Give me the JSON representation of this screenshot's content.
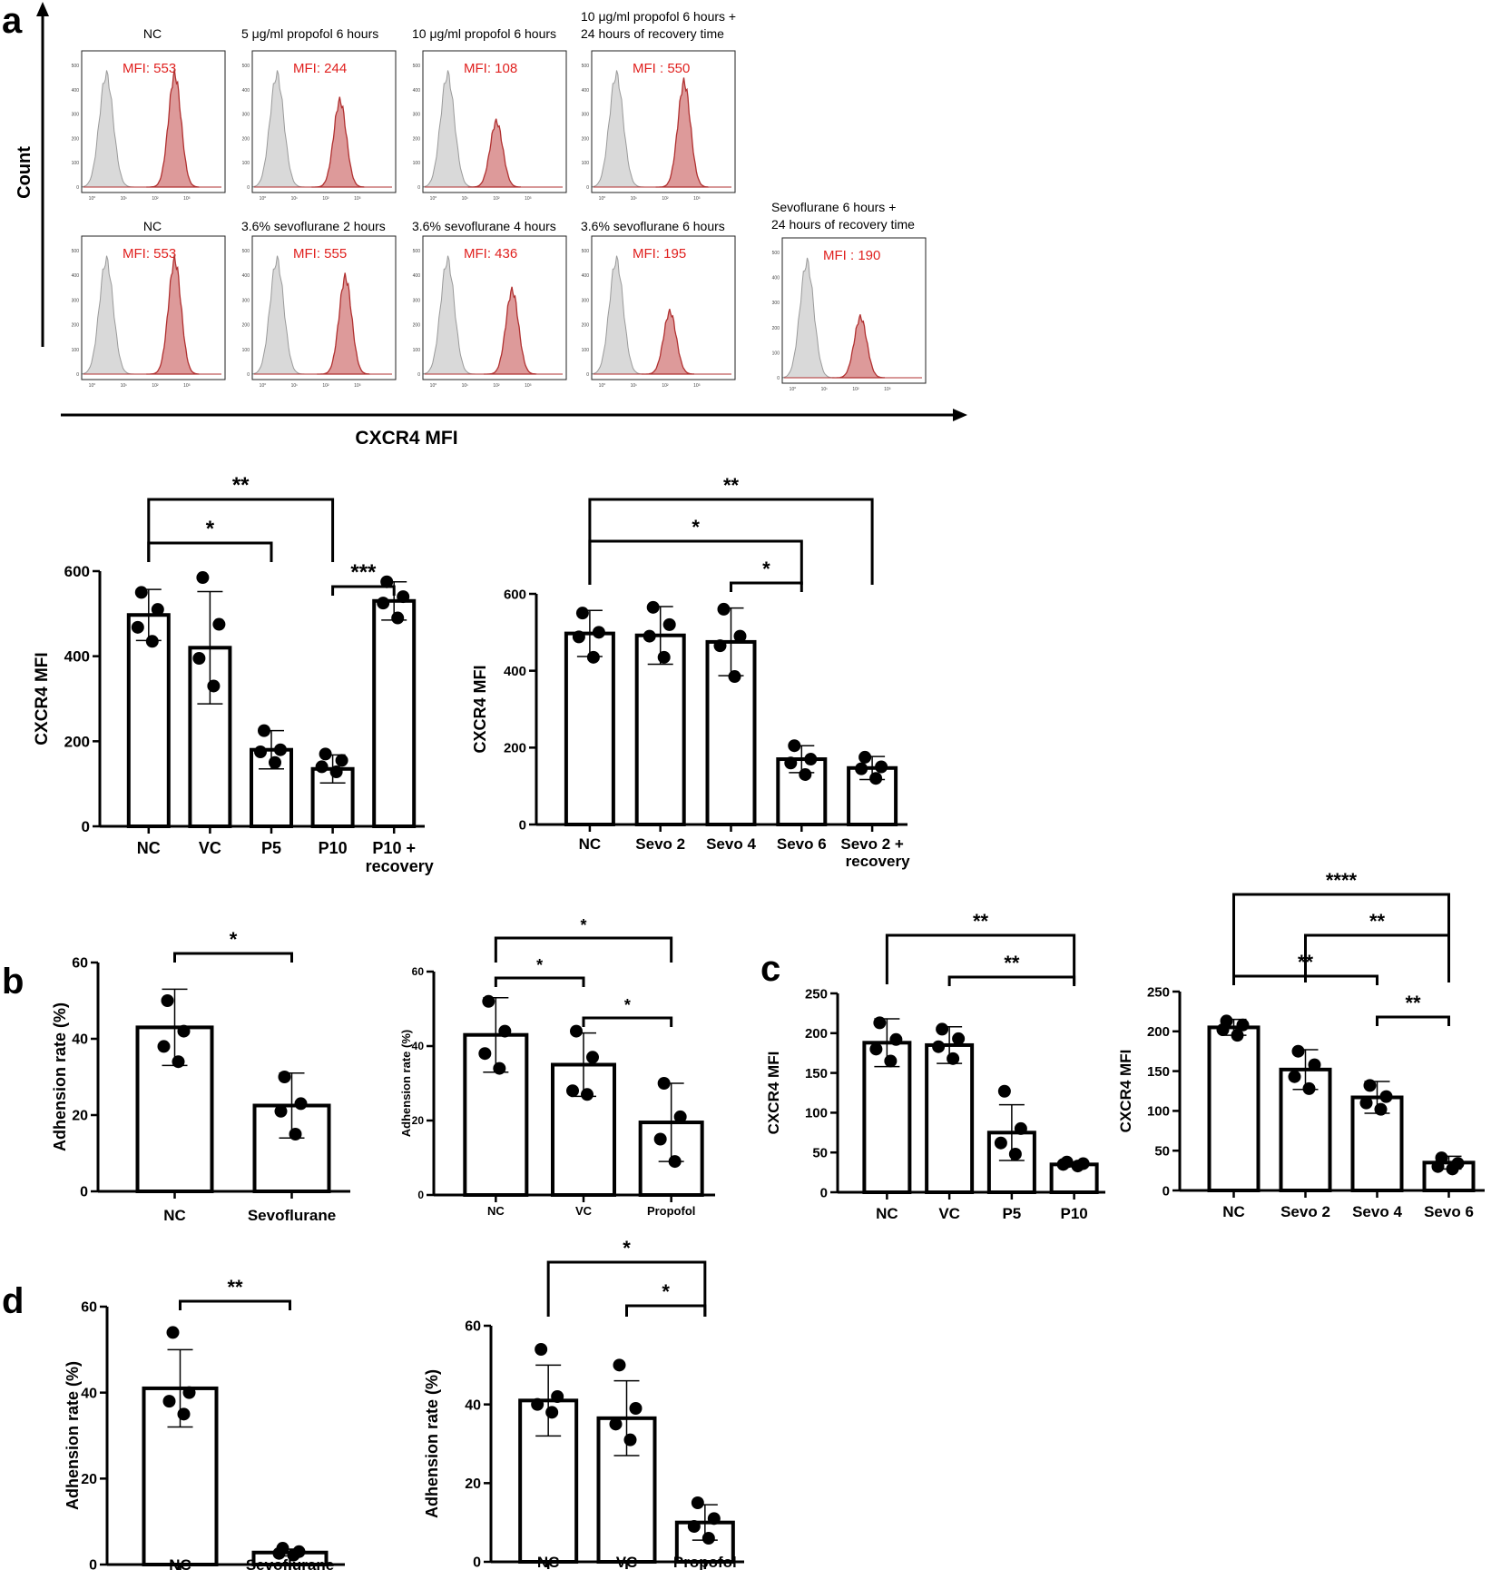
{
  "panels": {
    "a": {
      "letter": "a",
      "y_axis_label": "Count",
      "x_axis_label": "CXCR4 MFI",
      "histogram_rows": [
        [
          {
            "title": [
              "NC"
            ],
            "mfi": "MFI: 553",
            "peak_log": 2.72,
            "height": 0.86
          },
          {
            "title": [
              "5 μg/ml propofol 6 hours"
            ],
            "mfi": "MFI: 244",
            "peak_log": 2.55,
            "height": 0.66
          },
          {
            "title": [
              "10 μg/ml propofol 6 hours"
            ],
            "mfi": "MFI: 108",
            "peak_log": 2.1,
            "height": 0.5
          },
          {
            "title": [
              "10 μg/ml propofol 6 hours +",
              "24 hours of recovery time"
            ],
            "mfi": "MFI : 550",
            "peak_log": 2.7,
            "height": 0.8
          }
        ],
        [
          {
            "title": [
              "NC"
            ],
            "mfi": "MFI: 553",
            "peak_log": 2.72,
            "height": 0.86
          },
          {
            "title": [
              "3.6% sevoflurane 2 hours"
            ],
            "mfi": "MFI: 555",
            "peak_log": 2.72,
            "height": 0.73
          },
          {
            "title": [
              "3.6% sevoflurane 4 hours"
            ],
            "mfi": "MFI: 436",
            "peak_log": 2.6,
            "height": 0.63
          },
          {
            "title": [
              "3.6% sevoflurane 6 hours"
            ],
            "mfi": "MFI: 195",
            "peak_log": 2.25,
            "height": 0.47
          },
          {
            "title": [
              "Sevoflurane 6 hours +",
              "24 hours of recovery time"
            ],
            "mfi": "MFI : 190",
            "peak_log": 2.25,
            "height": 0.45
          }
        ]
      ],
      "hist_y_ticks": [
        "0",
        "100",
        "200",
        "300",
        "400",
        "500"
      ],
      "hist_x_ticks": [
        "10⁰",
        "10¹",
        "10²",
        "10³"
      ]
    },
    "b": {
      "letter": "b"
    },
    "c": {
      "letter": "c"
    },
    "d": {
      "letter": "d"
    }
  },
  "colors": {
    "histogram_fill": "#dd9a9a",
    "histogram_line": "#b03030",
    "isotype_fill": "#d9d9d9",
    "isotype_line": "#9a9a9a",
    "mfi_text": "#e0201e"
  },
  "chart_data": [
    {
      "id": "a-left",
      "type": "bar",
      "categories": [
        "NC",
        "VC",
        "P5",
        "P10",
        "P10 +\nrecovery"
      ],
      "values": [
        497,
        420,
        180,
        135,
        530
      ],
      "errors": [
        60,
        132,
        45,
        33,
        45
      ],
      "points": [
        [
          550,
          510,
          468,
          435
        ],
        [
          585,
          475,
          395,
          330
        ],
        [
          225,
          180,
          175,
          150
        ],
        [
          170,
          155,
          140,
          128
        ],
        [
          575,
          540,
          525,
          490
        ]
      ],
      "ylabel": "CXCR4 MFI",
      "ylim": [
        0,
        600
      ],
      "yticks": [
        0,
        200,
        400,
        600
      ],
      "significance": [
        {
          "from": 0,
          "to": 3,
          "label": "**"
        },
        {
          "from": 0,
          "to": 2,
          "label": "*"
        },
        {
          "from": 3,
          "to": 4,
          "label": "***"
        }
      ]
    },
    {
      "id": "a-right",
      "type": "bar",
      "categories": [
        "NC",
        "Sevo 2",
        "Sevo 4",
        "Sevo 6",
        "Sevo 2 +\nrecovery"
      ],
      "values": [
        497,
        492,
        475,
        170,
        147
      ],
      "errors": [
        60,
        75,
        88,
        35,
        30
      ],
      "points": [
        [
          550,
          500,
          488,
          435
        ],
        [
          565,
          520,
          490,
          435
        ],
        [
          560,
          490,
          465,
          385
        ],
        [
          205,
          170,
          160,
          130
        ],
        [
          175,
          150,
          145,
          120
        ]
      ],
      "ylabel": "CXCR4 MFI",
      "ylim": [
        0,
        600
      ],
      "yticks": [
        0,
        200,
        400,
        600
      ],
      "significance": [
        {
          "from": 0,
          "to": 4,
          "label": "**"
        },
        {
          "from": 0,
          "to": 3,
          "label": "*"
        },
        {
          "from": 2,
          "to": 3,
          "label": "*"
        }
      ]
    },
    {
      "id": "b-left",
      "type": "bar",
      "categories": [
        "NC",
        "Sevoflurane"
      ],
      "values": [
        43,
        22.5
      ],
      "errors": [
        10,
        8.5
      ],
      "points": [
        [
          50,
          42,
          38,
          34
        ],
        [
          30,
          23,
          21,
          15
        ]
      ],
      "ylabel": "Adhension rate (%)",
      "ylim": [
        0,
        60
      ],
      "yticks": [
        0,
        20,
        40,
        60
      ],
      "significance": [
        {
          "from": 0,
          "to": 1,
          "label": "*"
        }
      ]
    },
    {
      "id": "b-right",
      "type": "bar",
      "categories": [
        "NC",
        "VC",
        "Propofol"
      ],
      "values": [
        43,
        35,
        19.5
      ],
      "errors": [
        10,
        8.5,
        10.5
      ],
      "points": [
        [
          52,
          44,
          38,
          34
        ],
        [
          44,
          37,
          28,
          27
        ],
        [
          30,
          21,
          15,
          9
        ]
      ],
      "ylabel": "Adhension rate (%)",
      "ylim": [
        0,
        60
      ],
      "yticks": [
        0,
        20,
        40,
        60
      ],
      "significance": [
        {
          "from": 0,
          "to": 2,
          "label": "*"
        },
        {
          "from": 0,
          "to": 1,
          "label": "*"
        },
        {
          "from": 1,
          "to": 2,
          "label": "*"
        }
      ]
    },
    {
      "id": "c-left",
      "type": "bar",
      "categories": [
        "NC",
        "VC",
        "P5",
        "P10"
      ],
      "values": [
        188,
        185,
        75,
        35
      ],
      "errors": [
        30,
        23,
        35,
        3
      ],
      "points": [
        [
          213,
          192,
          180,
          165
        ],
        [
          205,
          193,
          183,
          168
        ],
        [
          127,
          80,
          62,
          48
        ],
        [
          38,
          36,
          35,
          33
        ]
      ],
      "ylabel": "CXCR4 MFI",
      "ylim": [
        0,
        250
      ],
      "yticks": [
        0,
        50,
        100,
        150,
        200,
        250
      ],
      "significance": [
        {
          "from": 0,
          "to": 3,
          "label": "**"
        },
        {
          "from": 1,
          "to": 3,
          "label": "**"
        }
      ]
    },
    {
      "id": "c-right",
      "type": "bar",
      "categories": [
        "NC",
        "Sevo 2",
        "Sevo 4",
        "Sevo 6"
      ],
      "values": [
        205,
        152,
        117,
        35
      ],
      "errors": [
        10,
        25,
        20,
        8
      ],
      "points": [
        [
          213,
          208,
          202,
          195
        ],
        [
          175,
          158,
          143,
          128
        ],
        [
          132,
          118,
          110,
          102
        ],
        [
          41,
          34,
          30,
          27
        ]
      ],
      "ylabel": "CXCR4 MFI",
      "ylim": [
        0,
        250
      ],
      "yticks": [
        0,
        50,
        100,
        150,
        200,
        250
      ],
      "significance": [
        {
          "from": 0,
          "to": 3,
          "label": "****"
        },
        {
          "from": 1,
          "to": 3,
          "label": "**"
        },
        {
          "from": 0,
          "to": 2,
          "label": "**"
        },
        {
          "from": 2,
          "to": 3,
          "label": "**"
        }
      ]
    },
    {
      "id": "d-left",
      "type": "bar",
      "categories": [
        "NC",
        "Sevoflurane"
      ],
      "values": [
        41,
        2.8
      ],
      "errors": [
        9,
        0.8
      ],
      "points": [
        [
          54,
          40,
          38,
          35
        ],
        [
          3.8,
          3,
          2.6,
          2.2
        ]
      ],
      "ylabel": "Adhension rate (%)",
      "ylim": [
        0,
        60
      ],
      "yticks": [
        0,
        20,
        40,
        60
      ],
      "significance": [
        {
          "from": 0,
          "to": 1,
          "label": "**"
        }
      ]
    },
    {
      "id": "d-right",
      "type": "bar",
      "categories": [
        "NC",
        "VC",
        "Propofol"
      ],
      "values": [
        41,
        36.5,
        10
      ],
      "errors": [
        9,
        9.5,
        4.5
      ],
      "points": [
        [
          54,
          42,
          40,
          38
        ],
        [
          50,
          39,
          35,
          31
        ],
        [
          15,
          11,
          9,
          6
        ]
      ],
      "ylabel": "Adhension rate (%)",
      "ylim": [
        0,
        60
      ],
      "yticks": [
        0,
        20,
        40,
        60
      ],
      "significance": [
        {
          "from": 0,
          "to": 2,
          "label": "*"
        },
        {
          "from": 1,
          "to": 2,
          "label": "*"
        }
      ]
    }
  ]
}
